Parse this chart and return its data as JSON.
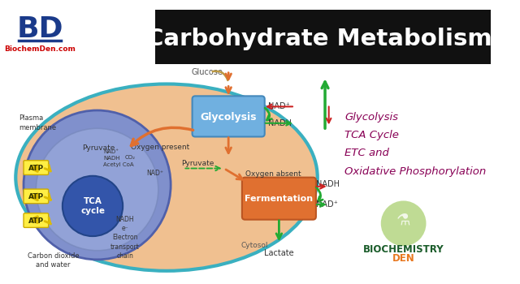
{
  "title": "Carbohydrate Metabolism",
  "title_bg": "#111111",
  "title_color": "#ffffff",
  "bd_text": "BD",
  "bd_color": "#1a3a8a",
  "site_text": "BiochemDen.com",
  "site_color": "#cc0000",
  "bg_color": "#ffffff",
  "cell_bg": "#f0c090",
  "cell_border": "#3ab0c0",
  "mito_bg": "#8090cc",
  "mito_border": "#5060aa",
  "mito_inner_bg": "#9aabdd",
  "glycolysis_box": "#70b0e0",
  "fermentation_box_top": "#e07030",
  "fermentation_box_bot": "#e09030",
  "tca_circle": "#3355aa",
  "list_items": [
    "Glycolysis",
    "TCA Cycle",
    "ETC and",
    "Oxidative Phosphorylation"
  ],
  "list_color": "#880055",
  "biochemistry_color": "#1a5c2a",
  "den_color": "#e87820",
  "logo_circle_color": "#b8d888",
  "arrow_orange": "#e07030",
  "arrow_yellow": "#ddbb00",
  "arrow_green": "#22aa33",
  "arrow_red": "#cc2222",
  "text_dark": "#333333",
  "text_gray": "#555555",
  "atp_fill": "#ffee44",
  "atp_edge": "#ccaa00"
}
